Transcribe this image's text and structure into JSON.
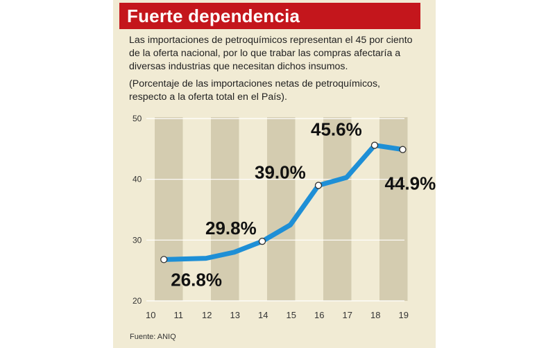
{
  "header": {
    "title": "Fuerte dependencia"
  },
  "description": {
    "text": "Las importaciones de petroquímicos representan el 45 por ciento de la oferta nacional, por lo que trabar las compras afectaría a diversas industrias que necesitan dichos insumos.",
    "unit_note": "(Porcentaje de las importaciones netas de petroquímicos, respecto a la oferta total en el País)."
  },
  "source": "Fuente: ANIQ",
  "colors": {
    "title_bar": "#c4161c",
    "line": "#1e8fd6",
    "background": "#f1ebd4",
    "shaded_band": "#cfc7a9"
  },
  "chart_data": {
    "type": "line",
    "title": "Fuerte dependencia",
    "xlabel": "",
    "ylabel": "",
    "categories": [
      "10",
      "11",
      "12",
      "13",
      "14",
      "15",
      "16",
      "17",
      "18",
      "19"
    ],
    "y_ticks": [
      "20",
      "30",
      "40",
      "50"
    ],
    "ylim": [
      20,
      50
    ],
    "grid": true,
    "series": [
      {
        "name": "Importaciones netas de petroquímicos (% de la oferta total)",
        "x": [
          10.5,
          12,
          13,
          14,
          15,
          16,
          17,
          18,
          19
        ],
        "values": [
          26.8,
          27.0,
          28.0,
          29.8,
          32.5,
          39.0,
          40.3,
          45.6,
          44.9
        ]
      }
    ],
    "highlighted_points": [
      {
        "x": 10.5,
        "y": 26.8,
        "label": "26.8%"
      },
      {
        "x": 14,
        "y": 29.8,
        "label": "29.8%"
      },
      {
        "x": 16,
        "y": 39.0,
        "label": "39.0%"
      },
      {
        "x": 18,
        "y": 45.6,
        "label": "45.6%"
      },
      {
        "x": 19,
        "y": 44.9,
        "label": "44.9%"
      }
    ],
    "shaded_bands": [
      [
        10,
        11
      ],
      [
        12,
        13
      ],
      [
        14,
        15
      ],
      [
        16,
        17
      ],
      [
        18,
        19
      ]
    ]
  }
}
